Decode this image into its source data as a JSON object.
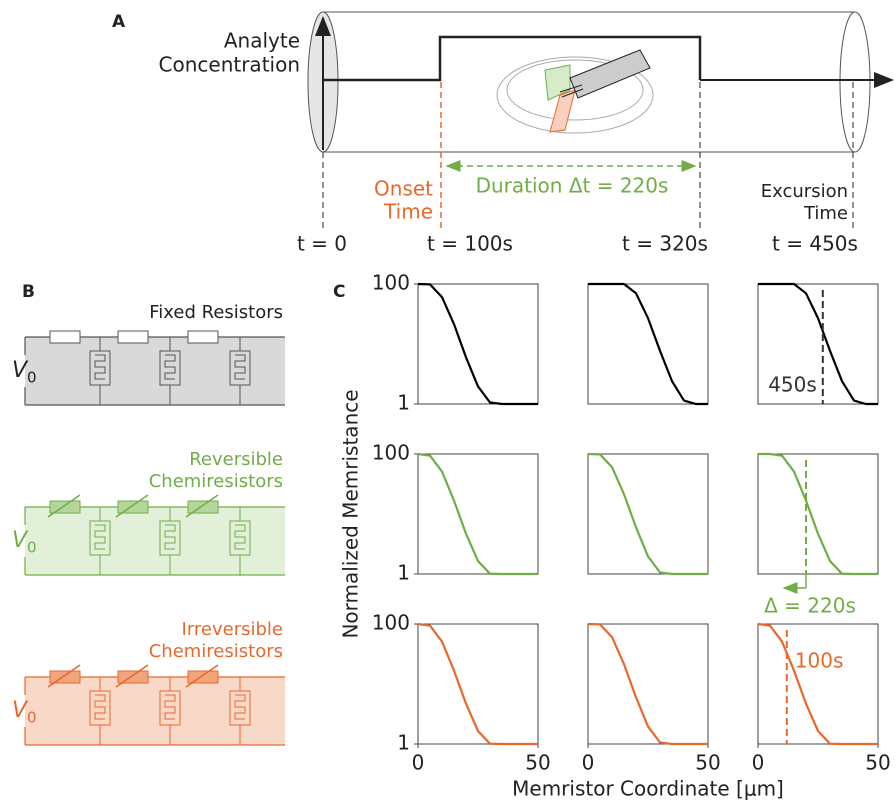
{
  "panel_a": {
    "label": "A",
    "y_label": [
      "Analyte",
      "Concentration"
    ],
    "onset": [
      "Onset",
      "Time"
    ],
    "duration": "Duration Δt = 220s",
    "excursion": [
      "Excursion",
      "Time"
    ],
    "times": [
      "t = 0",
      "t = 100s",
      "t = 320s",
      "t = 450s"
    ]
  },
  "panel_b": {
    "label": "B",
    "blocks": [
      {
        "title": [
          "Fixed Resistors"
        ]
      },
      {
        "title": [
          "Reversible",
          "Chemiresistors"
        ]
      },
      {
        "title": [
          "Irreversible",
          "Chemiresistors"
        ]
      }
    ],
    "voltage": {
      "symbol": "V",
      "subscript": "0"
    }
  },
  "panel_c": {
    "label": "C",
    "y_label": "Normalized Memristance",
    "x_label": "Memristor Coordinate [μm]"
  },
  "chart_data": [
    {
      "type": "line",
      "log_scale": true,
      "x": [
        0,
        5,
        10,
        15,
        20,
        25,
        30,
        35,
        40,
        45,
        50
      ],
      "xlim": [
        0,
        50
      ],
      "ylim": [
        1,
        100
      ],
      "yticks": [
        1,
        100
      ],
      "series": [
        {
          "color": "#000000",
          "values": [
            100,
            98.6,
            60.5,
            21.4,
            6,
            1.96,
            1.06,
            1,
            1,
            1,
            1
          ]
        }
      ]
    },
    {
      "type": "line",
      "log_scale": true,
      "x": [
        0,
        5,
        10,
        15,
        20,
        25,
        30,
        35,
        40,
        45,
        50
      ],
      "xlim": [
        0,
        50
      ],
      "ylim": [
        1,
        100
      ],
      "series": [
        {
          "color": "#000000",
          "values": [
            100,
            100,
            100,
            100,
            70,
            27,
            7.7,
            2.4,
            1.14,
            1,
            1
          ]
        }
      ]
    },
    {
      "type": "line",
      "log_scale": true,
      "x": [
        0,
        5,
        10,
        15,
        20,
        25,
        30,
        35,
        40,
        45,
        50
      ],
      "xlim": [
        0,
        50
      ],
      "ylim": [
        1,
        100
      ],
      "series": [
        {
          "color": "#000000",
          "values": [
            100,
            100,
            100,
            100,
            70,
            27,
            7.7,
            2.4,
            1.14,
            1,
            1
          ]
        }
      ],
      "marker": {
        "x": 27,
        "label": "450s",
        "color": "#333333"
      }
    },
    {
      "type": "line",
      "log_scale": true,
      "x": [
        0,
        5,
        10,
        15,
        20,
        25,
        30,
        35,
        40,
        45,
        50
      ],
      "xlim": [
        0,
        50
      ],
      "ylim": [
        1,
        100
      ],
      "yticks": [
        1,
        100
      ],
      "series": [
        {
          "color": "#70ad47",
          "values": [
            100,
            94,
            51,
            16.7,
            4.7,
            1.65,
            1.01,
            1,
            1,
            1,
            1
          ]
        }
      ]
    },
    {
      "type": "line",
      "log_scale": true,
      "x": [
        0,
        5,
        10,
        15,
        20,
        25,
        30,
        35,
        40,
        45,
        50
      ],
      "xlim": [
        0,
        50
      ],
      "ylim": [
        1,
        100
      ],
      "series": [
        {
          "color": "#70ad47",
          "values": [
            100,
            98.6,
            60.5,
            21.4,
            6,
            1.96,
            1.06,
            1,
            1,
            1,
            1
          ]
        }
      ]
    },
    {
      "type": "line",
      "log_scale": true,
      "x": [
        0,
        5,
        10,
        15,
        20,
        25,
        30,
        35,
        40,
        45,
        50
      ],
      "xlim": [
        0,
        50
      ],
      "ylim": [
        1,
        100
      ],
      "series": [
        {
          "color": "#70ad47",
          "values": [
            100,
            100,
            94,
            51,
            16.7,
            4.7,
            1.65,
            1.01,
            1,
            1,
            1
          ]
        }
      ],
      "marker": {
        "x": 20,
        "label": "Δ = 220s",
        "color": "#70ad47"
      }
    },
    {
      "type": "line",
      "log_scale": true,
      "x": [
        0,
        5,
        10,
        15,
        20,
        25,
        30,
        35,
        40,
        45,
        50
      ],
      "xlim": [
        0,
        50
      ],
      "ylim": [
        1,
        100
      ],
      "yticks": [
        1,
        100
      ],
      "xticks": [
        0,
        50
      ],
      "series": [
        {
          "color": "#e8682c",
          "values": [
            100,
            94,
            51,
            16.7,
            4.7,
            1.65,
            1.01,
            1,
            1,
            1,
            1
          ]
        }
      ]
    },
    {
      "type": "line",
      "log_scale": true,
      "x": [
        0,
        5,
        10,
        15,
        20,
        25,
        30,
        35,
        40,
        45,
        50
      ],
      "xlim": [
        0,
        50
      ],
      "ylim": [
        1,
        100
      ],
      "xticks": [
        0,
        50
      ],
      "series": [
        {
          "color": "#e8682c",
          "values": [
            100,
            98.6,
            60.5,
            21.4,
            6,
            1.96,
            1.06,
            1,
            1,
            1,
            1
          ]
        }
      ]
    },
    {
      "type": "line",
      "log_scale": true,
      "x": [
        0,
        5,
        10,
        15,
        20,
        25,
        30,
        35,
        40,
        45,
        50
      ],
      "xlim": [
        0,
        50
      ],
      "ylim": [
        1,
        100
      ],
      "xticks": [
        0,
        50
      ],
      "series": [
        {
          "color": "#e8682c",
          "values": [
            100,
            94,
            51,
            16.7,
            4.7,
            1.65,
            1.01,
            1,
            1,
            1,
            1
          ]
        }
      ],
      "marker": {
        "x": 12,
        "label": "100s",
        "color": "#e8682c"
      }
    }
  ]
}
